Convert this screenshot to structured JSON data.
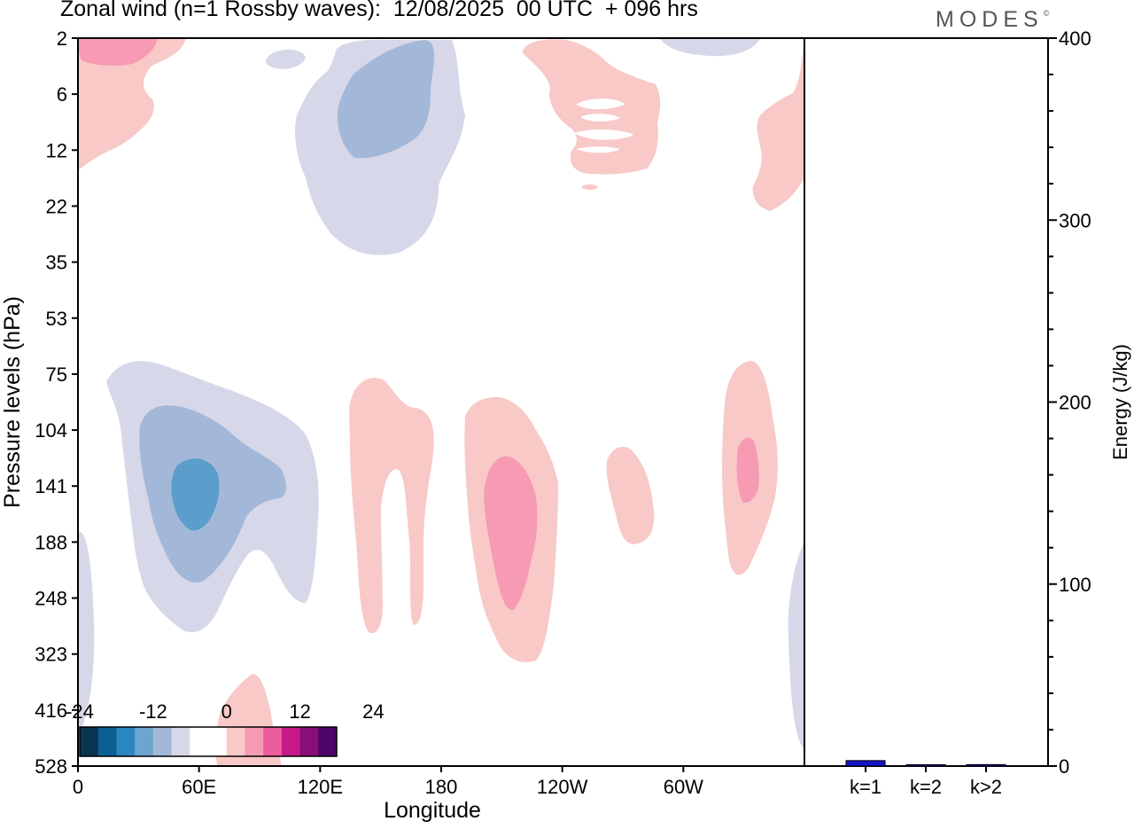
{
  "header": {
    "title": "Zonal wind (n=1 Rossby waves):  12/08/2025  00 UTC  + 096 hrs",
    "logo": "MODES",
    "logo_mark": "©"
  },
  "colors": {
    "strong_negative": "#a3b8d8",
    "weak_negative": "#d6d7e8",
    "core_negative": "#5b9ecb",
    "weak_positive": "#f8c9c7",
    "strong_positive": "#f79ab3",
    "energy_bar": "#1414c8"
  },
  "chart_data": [
    {
      "type": "heatmap",
      "title": "Zonal wind (n=1 Rossby waves):  12/08/2025  00 UTC  + 096 hrs",
      "xlabel": "Longitude",
      "ylabel": "Pressure levels (hPa)",
      "x_tick_labels": [
        "0",
        "60E",
        "120E",
        "180",
        "120W",
        "60W"
      ],
      "x_tick_degrees": [
        0,
        60,
        120,
        180,
        240,
        300
      ],
      "xlim": [
        0,
        360
      ],
      "y_tick_labels": [
        "2",
        "6",
        "12",
        "22",
        "35",
        "53",
        "75",
        "104",
        "141",
        "188",
        "248",
        "323",
        "416",
        "528"
      ],
      "y_scale": "pressure levels, top = 2 hPa, bottom = 528 hPa",
      "colorbar": {
        "tick_labels": [
          "-24",
          "-12",
          "0",
          "12",
          "24"
        ],
        "tick_values": [
          -24,
          -12,
          0,
          12,
          24
        ],
        "step": 3,
        "colors": [
          "#0b3352",
          "#0b5f93",
          "#2b85bf",
          "#6ca5cd",
          "#a3b8d8",
          "#d6d7e8",
          "#ffffff",
          "#ffffff",
          "#f8c9c7",
          "#f79ab3",
          "#ec5d9e",
          "#c71a8a",
          "#8a0e77",
          "#4d0668"
        ]
      },
      "features": [
        {
          "name": "negative cell near 60E upper troposphere",
          "sign": "negative",
          "lon_center": 58,
          "level_center": "141",
          "max_abs": 12
        },
        {
          "name": "negative cell near 150E stratosphere",
          "sign": "negative",
          "lon_center": 150,
          "level_center": "6",
          "max_abs": 9
        },
        {
          "name": "positive cell near 160W",
          "sign": "positive",
          "lon_center": 202,
          "level_center": "188",
          "max_abs": 9
        },
        {
          "name": "positive cell near 35W",
          "sign": "positive",
          "lon_center": 331,
          "level_center": "141",
          "max_abs": 9
        },
        {
          "name": "positive cell near 0 stratosphere",
          "sign": "positive",
          "lon_center": 20,
          "level_center": "2",
          "max_abs": 9
        }
      ]
    },
    {
      "type": "bar",
      "title": "",
      "xlabel": "",
      "ylabel": "Energy (J/kg)",
      "categories": [
        "k=1",
        "k=2",
        "k>2"
      ],
      "values": [
        3,
        0.5,
        0.8
      ],
      "ylim": [
        0,
        400
      ],
      "y_tick_labels": [
        "0",
        "100",
        "200",
        "300",
        "400"
      ],
      "y_tick_values": [
        0,
        100,
        200,
        300,
        400
      ]
    }
  ]
}
